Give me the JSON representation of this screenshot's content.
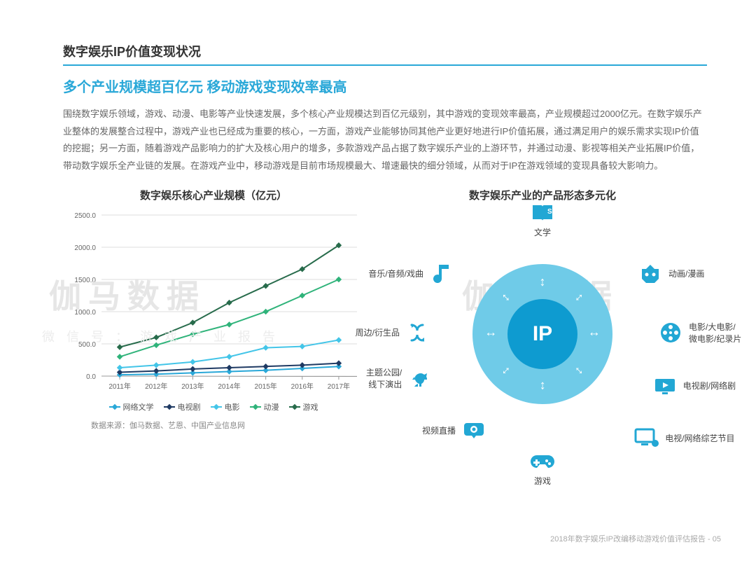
{
  "section_title": "数字娱乐IP价值变现状况",
  "headline": "多个产业规模超百亿元 移动游戏变现效率最高",
  "body": "围绕数字娱乐领域，游戏、动漫、电影等产业快速发展，多个核心产业规模达到百亿元级别，其中游戏的变现效率最高，产业规模超过2000亿元。在数字娱乐产业整体的发展整合过程中，游戏产业也已经成为重要的核心，一方面，游戏产业能够协同其他产业更好地进行IP价值拓展，通过满足用户的娱乐需求实现IP价值的挖掘；另一方面，随着游戏产品影响力的扩大及核心用户的增多，多款游戏产品占据了数字娱乐产业的上游环节，并通过动漫、影视等相关产业拓展IP价值，带动数字娱乐全产业链的发展。在游戏产业中，移动游戏是目前市场规模最大、增速最快的细分领域，从而对于IP在游戏领域的变现具备较大影响力。",
  "chart": {
    "title": "数字娱乐核心产业规模（亿元）",
    "type": "line",
    "years": [
      "2011年",
      "2012年",
      "2013年",
      "2014年",
      "2015年",
      "2016年",
      "2017年"
    ],
    "ylim": [
      0,
      2500
    ],
    "ytick_step": 500,
    "grid_color": "#dddddd",
    "axis_color": "#999999",
    "tick_fontsize": 10,
    "title_fontsize": 15,
    "series": [
      {
        "name": "网络文学",
        "color": "#2aa8d8",
        "values": [
          20,
          30,
          50,
          70,
          90,
          120,
          150
        ]
      },
      {
        "name": "电视剧",
        "color": "#1f3a63",
        "values": [
          60,
          80,
          110,
          130,
          150,
          170,
          200
        ]
      },
      {
        "name": "电影",
        "color": "#43c5e8",
        "values": [
          130,
          170,
          220,
          300,
          440,
          460,
          560
        ]
      },
      {
        "name": "动漫",
        "color": "#2fb37a",
        "values": [
          300,
          480,
          650,
          800,
          1000,
          1250,
          1500
        ]
      },
      {
        "name": "游戏",
        "color": "#276b4b",
        "values": [
          450,
          600,
          830,
          1140,
          1400,
          1660,
          2030
        ]
      }
    ],
    "source": "数据来源：伽马数据、艺恩、中国产业信息网"
  },
  "diagram": {
    "title": "数字娱乐产业的产品形态多元化",
    "center_label": "IP",
    "outer_color": "#6fcbe8",
    "inner_color": "#0e9bd0",
    "icon_color": "#22a7d4",
    "nodes": [
      {
        "key": "literature",
        "label": "文学",
        "pos": "top"
      },
      {
        "key": "anime",
        "label": "动画/漫画",
        "pos": "tr"
      },
      {
        "key": "movie",
        "label": "电影/大电影/\n微电影/纪录片",
        "pos": "r"
      },
      {
        "key": "tvdrama",
        "label": "电视剧/网络剧",
        "pos": "r2"
      },
      {
        "key": "tvshow",
        "label": "电视/网络综艺节目",
        "pos": "br"
      },
      {
        "key": "game",
        "label": "游戏",
        "pos": "bottom"
      },
      {
        "key": "video",
        "label": "视频直播",
        "pos": "bl"
      },
      {
        "key": "themepark",
        "label": "主题公园/\n线下演出",
        "pos": "l2"
      },
      {
        "key": "merch",
        "label": "周边/衍生品",
        "pos": "l"
      },
      {
        "key": "music",
        "label": "音乐/音频/戏曲",
        "pos": "tl"
      }
    ]
  },
  "watermarks": {
    "big1": "伽马数据",
    "big2": "伽马数据",
    "small": "微 信 号 ： 游 戏 产 业 报 告"
  },
  "footer": "2018年数字娱乐IP改编移动游戏价值评估报告 - 05"
}
